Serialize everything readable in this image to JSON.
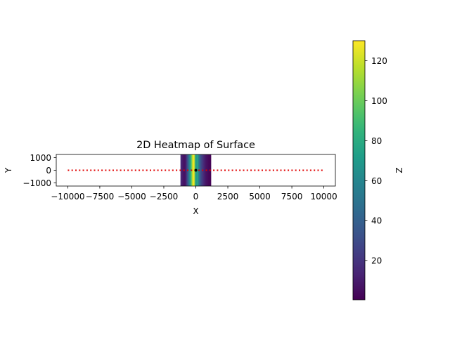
{
  "chart_data": {
    "type": "heatmap",
    "title": "2D Heatmap of Surface",
    "xlabel": "X",
    "ylabel": "Y",
    "colorbar_label": "Z",
    "colormap": "viridis",
    "xlim": [
      -10900,
      10900
    ],
    "ylim": [
      -1250,
      1250
    ],
    "x_ticks": [
      -10000,
      -7500,
      -5000,
      -2500,
      0,
      2500,
      5000,
      7500,
      10000
    ],
    "x_tick_labels": [
      "−10000",
      "−7500",
      "−5000",
      "−2500",
      "0",
      "2500",
      "5000",
      "7500",
      "10000"
    ],
    "y_ticks": [
      1000,
      0,
      -1000
    ],
    "y_tick_labels": [
      "1000",
      "0",
      "−1000"
    ],
    "heatmap": {
      "x_range": [
        -1200,
        1200
      ],
      "y_range": [
        -1250,
        1250
      ],
      "z_range": [
        0.5,
        130
      ],
      "profile": {
        "x": [
          -1200,
          -1050,
          -900,
          -800,
          -700,
          -600,
          -500,
          -400,
          -330,
          -260,
          -200,
          -130,
          -80,
          -30,
          0,
          40,
          100,
          180,
          270,
          370,
          480,
          600,
          720,
          850,
          1000,
          1200
        ],
        "value": [
          18,
          10,
          6,
          9,
          25,
          40,
          60,
          80,
          100,
          118,
          130,
          124,
          105,
          78,
          60,
          68,
          80,
          66,
          48,
          34,
          24,
          16,
          10,
          6,
          3,
          1
        ]
      }
    },
    "line_series": {
      "color": "#e00000",
      "style": "dotted",
      "x": [
        -10000,
        10000
      ],
      "y": [
        0,
        0
      ]
    },
    "marker": {
      "x": 0,
      "y": 0,
      "color": "#000000"
    },
    "colorbar": {
      "min": 0.5,
      "max": 130,
      "ticks": [
        20,
        40,
        60,
        80,
        100,
        120
      ],
      "tick_labels": [
        "20",
        "40",
        "60",
        "80",
        "100",
        "120"
      ]
    }
  }
}
